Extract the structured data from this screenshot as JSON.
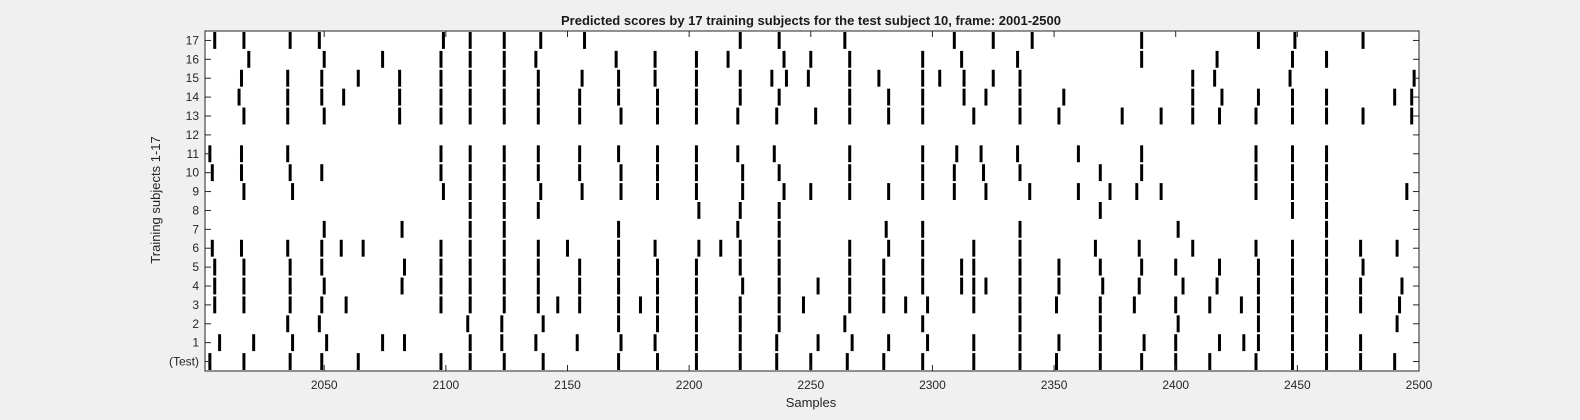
{
  "chart_data": {
    "type": "raster",
    "title": "Predicted scores by 17 training subjects for the test subject 10, frame: 2001-2500",
    "xlabel": "Samples",
    "ylabel": "Training subjects 1-17",
    "xlim": [
      2001,
      2500
    ],
    "xticks": [
      2050,
      2100,
      2150,
      2200,
      2250,
      2300,
      2350,
      2400,
      2450,
      2500
    ],
    "ytick_labels": [
      "(Test)",
      "1",
      "2",
      "3",
      "4",
      "5",
      "6",
      "7",
      "8",
      "9",
      "10",
      "11",
      "12",
      "13",
      "14",
      "15",
      "16",
      "17"
    ],
    "grid": false,
    "series": [
      {
        "name": "(Test)",
        "events": [
          2003,
          2017,
          2036,
          2049,
          2064,
          2098,
          2110,
          2124,
          2140,
          2171,
          2187,
          2203,
          2221,
          2236,
          2250,
          2265,
          2280,
          2296,
          2317,
          2336,
          2351,
          2369,
          2386,
          2400,
          2414,
          2433,
          2448,
          2462,
          2476,
          2490
        ]
      },
      {
        "name": "1",
        "events": [
          2007,
          2021,
          2037,
          2051,
          2074,
          2083,
          2110,
          2123,
          2137,
          2154,
          2172,
          2186,
          2203,
          2221,
          2236,
          2253,
          2267,
          2282,
          2298,
          2317,
          2336,
          2352,
          2369,
          2387,
          2400,
          2418,
          2428,
          2434,
          2448,
          2462,
          2476
        ]
      },
      {
        "name": "2",
        "events": [
          2035,
          2048,
          2109,
          2123,
          2140,
          2171,
          2187,
          2203,
          2221,
          2237,
          2264,
          2296,
          2336,
          2369,
          2401,
          2434,
          2448,
          2462,
          2491
        ]
      },
      {
        "name": "3",
        "events": [
          2005,
          2017,
          2036,
          2049,
          2059,
          2098,
          2110,
          2124,
          2138,
          2146,
          2155,
          2171,
          2180,
          2187,
          2203,
          2221,
          2237,
          2247,
          2266,
          2280,
          2289,
          2298,
          2317,
          2336,
          2351,
          2369,
          2383,
          2400,
          2414,
          2427,
          2434,
          2448,
          2462,
          2476,
          2492
        ]
      },
      {
        "name": "4",
        "events": [
          2005,
          2017,
          2036,
          2050,
          2082,
          2098,
          2110,
          2124,
          2138,
          2155,
          2171,
          2187,
          2203,
          2222,
          2237,
          2253,
          2266,
          2280,
          2296,
          2312,
          2317,
          2322,
          2336,
          2352,
          2370,
          2385,
          2403,
          2417,
          2434,
          2448,
          2462,
          2476,
          2493
        ]
      },
      {
        "name": "5",
        "events": [
          2005,
          2017,
          2036,
          2049,
          2083,
          2098,
          2110,
          2124,
          2138,
          2155,
          2171,
          2187,
          2203,
          2221,
          2237,
          2266,
          2280,
          2296,
          2312,
          2317,
          2336,
          2352,
          2369,
          2386,
          2400,
          2418,
          2434,
          2448,
          2462,
          2477
        ]
      },
      {
        "name": "6",
        "events": [
          2004,
          2016,
          2035,
          2049,
          2057,
          2066,
          2098,
          2110,
          2124,
          2138,
          2150,
          2171,
          2186,
          2204,
          2213,
          2221,
          2237,
          2266,
          2282,
          2296,
          2317,
          2336,
          2367,
          2385,
          2407,
          2433,
          2448,
          2462,
          2476,
          2491
        ]
      },
      {
        "name": "7",
        "events": [
          2050,
          2082,
          2110,
          2124,
          2171,
          2220,
          2237,
          2281,
          2296,
          2336,
          2401,
          2462
        ]
      },
      {
        "name": "8",
        "events": [
          2110,
          2124,
          2138,
          2204,
          2221,
          2237,
          2369,
          2448,
          2462
        ]
      },
      {
        "name": "9",
        "events": [
          2017,
          2037,
          2099,
          2110,
          2124,
          2139,
          2156,
          2172,
          2187,
          2203,
          2222,
          2239,
          2250,
          2266,
          2282,
          2296,
          2309,
          2322,
          2340,
          2360,
          2373,
          2384,
          2394,
          2433,
          2448,
          2462,
          2495
        ]
      },
      {
        "name": "10",
        "events": [
          2004,
          2016,
          2036,
          2049,
          2098,
          2110,
          2124,
          2138,
          2155,
          2172,
          2187,
          2203,
          2222,
          2237,
          2266,
          2296,
          2309,
          2321,
          2336,
          2369,
          2386,
          2433,
          2448,
          2462
        ]
      },
      {
        "name": "11",
        "events": [
          2003,
          2016,
          2035,
          2098,
          2110,
          2124,
          2138,
          2155,
          2171,
          2187,
          2203,
          2220,
          2235,
          2266,
          2296,
          2310,
          2320,
          2335,
          2360,
          2386,
          2433,
          2448,
          2462
        ]
      },
      {
        "name": "12",
        "events": []
      },
      {
        "name": "13",
        "events": [
          2017,
          2035,
          2050,
          2081,
          2098,
          2110,
          2124,
          2138,
          2155,
          2172,
          2187,
          2203,
          2220,
          2236,
          2252,
          2266,
          2282,
          2296,
          2317,
          2336,
          2352,
          2378,
          2394,
          2407,
          2418,
          2433,
          2448,
          2462,
          2477,
          2497
        ]
      },
      {
        "name": "14",
        "events": [
          2015,
          2035,
          2049,
          2058,
          2081,
          2098,
          2110,
          2124,
          2138,
          2155,
          2171,
          2187,
          2203,
          2221,
          2237,
          2266,
          2282,
          2296,
          2313,
          2322,
          2336,
          2354,
          2407,
          2419,
          2434,
          2448,
          2462,
          2490,
          2497
        ]
      },
      {
        "name": "15",
        "events": [
          2016,
          2035,
          2049,
          2064,
          2081,
          2098,
          2110,
          2124,
          2138,
          2156,
          2171,
          2186,
          2203,
          2221,
          2234,
          2240,
          2249,
          2266,
          2278,
          2296,
          2303,
          2313,
          2325,
          2336,
          2407,
          2416,
          2447,
          2498
        ]
      },
      {
        "name": "16",
        "events": [
          2019,
          2050,
          2074,
          2098,
          2110,
          2124,
          2137,
          2170,
          2186,
          2203,
          2216,
          2239,
          2250,
          2266,
          2296,
          2312,
          2335,
          2386,
          2417,
          2448,
          2462
        ]
      },
      {
        "name": "17",
        "events": [
          2005,
          2017,
          2036,
          2048,
          2099,
          2110,
          2124,
          2139,
          2157,
          2221,
          2237,
          2264,
          2309,
          2325,
          2341,
          2386,
          2434,
          2449,
          2477
        ]
      }
    ]
  }
}
